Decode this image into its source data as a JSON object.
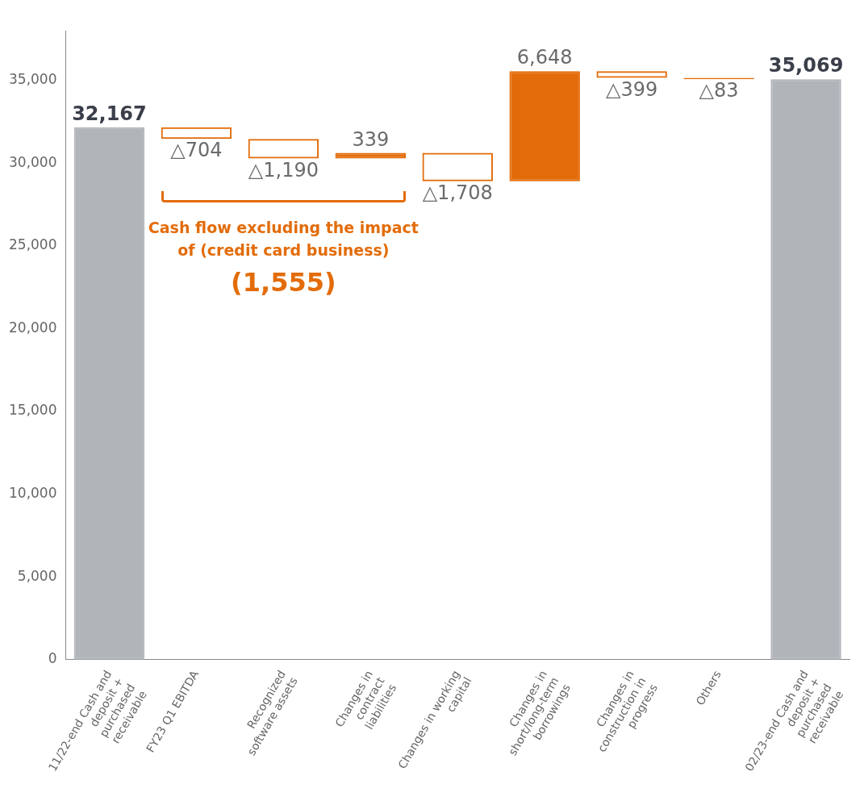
{
  "chart_data": {
    "type": "bar",
    "categories": [
      "11/22-end Cash and deposit + purchased receivable",
      "FY23 Q1 EBITDA",
      "Recognized software assets",
      "Changes in contract liabilities",
      "Changes in working capital",
      "Changes in short/long-term borrowings",
      "Changes in construction in progress",
      "Others",
      "02/23-end Cash and deposit + purchased receivable"
    ],
    "base": [
      0,
      32167,
      31463,
      30273,
      30612,
      28904,
      35552,
      35153,
      0
    ],
    "values": [
      32167,
      -704,
      -1190,
      339,
      -1708,
      6648,
      -399,
      -83,
      35069
    ],
    "colors": [
      "#b1b5ba",
      "#e36c0a",
      "#e36c0a",
      "#e36c0a",
      "#e36c0a",
      "#e36c0a",
      "#e36c0a",
      "#e36c0a",
      "#b1b5ba"
    ],
    "value_labels": [
      "32,167",
      "△704",
      "△1,190",
      "339",
      "△1,708",
      "6,648",
      "△399",
      "△83",
      "35,069"
    ],
    "ylim": [
      0,
      38000
    ],
    "yticks": [
      0,
      {
        "value": 5000,
        "label": "5,000"
      },
      {
        "value": 10000,
        "label": "10,000"
      },
      {
        "value": 15000,
        "label": "15,000"
      },
      {
        "value": 20000,
        "label": "20,000"
      },
      {
        "value": 25000,
        "label": "25,000"
      },
      {
        "value": 30000,
        "label": "30,000"
      },
      {
        "value": 35000,
        "label": "35,000"
      }
    ],
    "grid": false,
    "legend": false,
    "annotations": [
      "Cash flow excluding the impact of (credit card business)",
      "(1,555)"
    ]
  }
}
